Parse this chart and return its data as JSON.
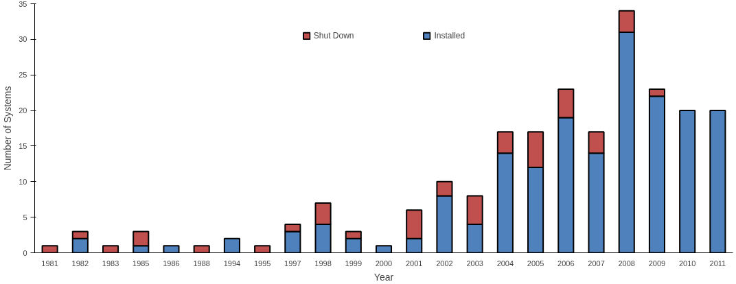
{
  "chart_data": {
    "type": "bar",
    "stacked": true,
    "xlabel": "Year",
    "ylabel": "Number of Systems",
    "categories": [
      "1981",
      "1982",
      "1983",
      "1985",
      "1986",
      "1988",
      "1994",
      "1995",
      "1997",
      "1998",
      "1999",
      "2000",
      "2001",
      "2002",
      "2003",
      "2004",
      "2005",
      "2006",
      "2007",
      "2008",
      "2009",
      "2010",
      "2011"
    ],
    "series": [
      {
        "name": "Installed",
        "color": "#4f81bd",
        "values": [
          0,
          2,
          0,
          1,
          1,
          0,
          2,
          0,
          3,
          4,
          2,
          1,
          2,
          8,
          4,
          14,
          12,
          19,
          14,
          31,
          22,
          20,
          20
        ]
      },
      {
        "name": "Shut Down",
        "color": "#c0504d",
        "values": [
          1,
          1,
          1,
          2,
          0,
          1,
          0,
          1,
          1,
          3,
          1,
          0,
          4,
          2,
          4,
          3,
          5,
          4,
          3,
          3,
          1,
          0,
          0
        ]
      }
    ],
    "ylim": [
      0,
      35
    ],
    "yticks": [
      0,
      5,
      10,
      15,
      20,
      25,
      30,
      35
    ],
    "grid": false,
    "legend": "top"
  }
}
